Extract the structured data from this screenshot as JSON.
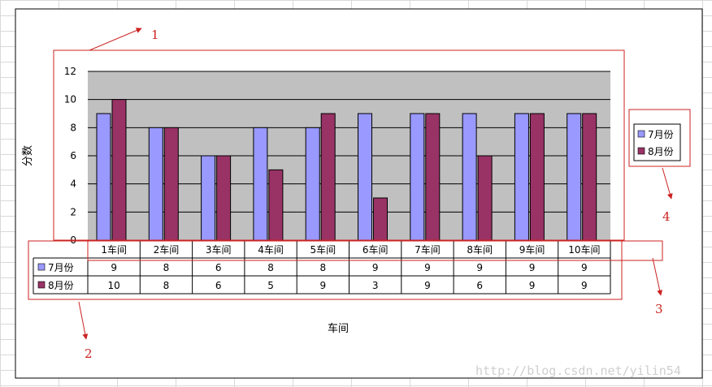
{
  "chart_data": {
    "type": "bar",
    "categories": [
      "1车间",
      "2车间",
      "3车间",
      "4车间",
      "5车间",
      "6车间",
      "7车间",
      "8车间",
      "9车间",
      "10车间"
    ],
    "series": [
      {
        "name": "7月份",
        "values": [
          9,
          8,
          6,
          8,
          8,
          9,
          9,
          9,
          9,
          9
        ],
        "color": "#9999ff"
      },
      {
        "name": "8月份",
        "values": [
          10,
          8,
          6,
          5,
          9,
          3,
          9,
          6,
          9,
          9
        ],
        "color": "#993366"
      }
    ],
    "ylim": [
      0,
      12
    ],
    "yticks": [
      0,
      2,
      4,
      6,
      8,
      10,
      12
    ],
    "xlabel": "车间",
    "ylabel": "分数",
    "grid": true,
    "plot_background": "#c0c0c0",
    "legend": "right",
    "data_table": true
  },
  "annotations": {
    "color": "#cc2222",
    "labels": [
      "1",
      "2",
      "3",
      "4"
    ]
  },
  "watermark": "http://blog.csdn.net/yilin54"
}
